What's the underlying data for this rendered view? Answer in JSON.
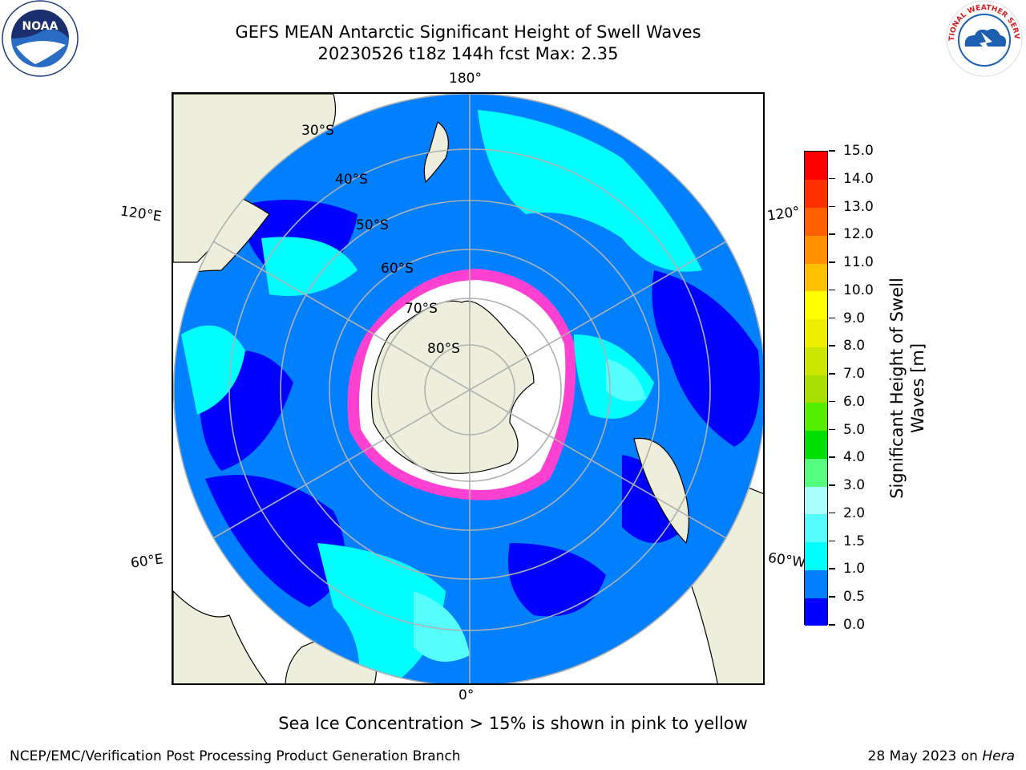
{
  "header": {
    "title_line1": "GEFS MEAN Antarctic Significant Height of Swell Waves",
    "title_line2": "20230526 t18z 144h fcst   Max: 2.35"
  },
  "logos": {
    "left": {
      "icon": "noaa-logo",
      "text": "NOAA"
    },
    "right": {
      "icon": "national-weather-service-logo",
      "text": "NATIONAL WEATHER SERVICE"
    }
  },
  "map": {
    "projection": "south-polar-stereographic",
    "lon_labels": {
      "top": "180°",
      "bottom": "0°",
      "left_upper": "120°E",
      "left_lower": "60°E",
      "right_upper": "120°",
      "right_lower": "60°W"
    },
    "lat_labels": [
      "30°S",
      "40°S",
      "50°S",
      "60°S",
      "70°S",
      "80°S"
    ],
    "colors": {
      "land": "#eeeedc",
      "ocean_low": "#0000ff",
      "ocean_mid": "#0080ff",
      "ocean_high": "#00ffff",
      "ocean_highest": "#55fdfd",
      "ice": "#ff40d0",
      "ice_edge": "#ffc000",
      "grid": "#b0b0b0"
    }
  },
  "colorbar": {
    "title_line1": "Significant Height of Swell",
    "title_line2": "Waves [m]",
    "ticks": [
      "0.0",
      "0.5",
      "1.0",
      "1.5",
      "2.0",
      "3.0",
      "4.0",
      "5.0",
      "6.0",
      "7.0",
      "8.0",
      "9.0",
      "10.0",
      "11.0",
      "12.0",
      "13.0",
      "14.0",
      "15.0"
    ],
    "colors": [
      "#0000ff",
      "#0080ff",
      "#00ffff",
      "#55fdfd",
      "#aafdfd",
      "#55ff80",
      "#00e000",
      "#55ee00",
      "#aadd00",
      "#cce600",
      "#eeee00",
      "#ffff00",
      "#ffc000",
      "#ff9000",
      "#ff6000",
      "#ff3000",
      "#ff0000"
    ]
  },
  "note": "Sea Ice Concentration > 15% is shown in pink to yellow",
  "footer": {
    "left": "NCEP/EMC/Verification Post Processing Product Generation Branch",
    "right_date": "28 May 2023 on",
    "right_host": "Hera"
  }
}
